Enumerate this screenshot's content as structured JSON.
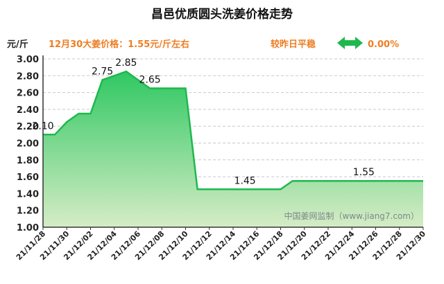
{
  "header": {
    "title": "昌邑优质圆头洗姜价格走势",
    "unit": "元/斤",
    "price_info": "12月30大姜价格：1.55元/斤左右",
    "change_label": "较昨日平稳",
    "change_value": "0.00%",
    "change_icon": "double-arrow-icon"
  },
  "watermark": "中国姜网监制（www.jiang7.com）",
  "colors": {
    "line": "#1fb84f",
    "fill_top": "#2fc862",
    "fill_bottom": "#d6ecc6",
    "arrow": "#1fb84f",
    "accent_text": "#ee7d22"
  },
  "chart_data": {
    "type": "area",
    "title": "昌邑优质圆头洗姜价格走势",
    "ylabel": "元/斤",
    "ylim": [
      1.0,
      3.0
    ],
    "yticks": [
      "1.00",
      "1.20",
      "1.40",
      "1.60",
      "1.80",
      "2.00",
      "2.20",
      "2.40",
      "2.60",
      "2.80",
      "3.00"
    ],
    "xticks": [
      "21/11/28",
      "21/11/30",
      "21/12/02",
      "21/12/04",
      "21/12/06",
      "21/12/08",
      "21/12/10",
      "21/12/12",
      "21/12/14",
      "21/12/16",
      "21/12/18",
      "21/12/20",
      "21/12/22",
      "21/12/24",
      "21/12/26",
      "21/12/28",
      "21/12/30"
    ],
    "grid": true,
    "x": [
      "21/11/28",
      "21/11/29",
      "21/11/30",
      "21/12/01",
      "21/12/02",
      "21/12/03",
      "21/12/04",
      "21/12/05",
      "21/12/06",
      "21/12/07",
      "21/12/08",
      "21/12/09",
      "21/12/10",
      "21/12/11",
      "21/12/12",
      "21/12/13",
      "21/12/14",
      "21/12/15",
      "21/12/16",
      "21/12/17",
      "21/12/18",
      "21/12/19",
      "21/12/20",
      "21/12/21",
      "21/12/22",
      "21/12/23",
      "21/12/24",
      "21/12/25",
      "21/12/26",
      "21/12/27",
      "21/12/28",
      "21/12/29",
      "21/12/30"
    ],
    "values": [
      2.1,
      2.1,
      2.25,
      2.35,
      2.35,
      2.75,
      2.8,
      2.85,
      2.75,
      2.65,
      2.65,
      2.65,
      2.65,
      1.45,
      1.45,
      1.45,
      1.45,
      1.45,
      1.45,
      1.45,
      1.45,
      1.55,
      1.55,
      1.55,
      1.55,
      1.55,
      1.55,
      1.55,
      1.55,
      1.55,
      1.55,
      1.55,
      1.55
    ],
    "annotations": [
      {
        "index": 0,
        "text": "2.10"
      },
      {
        "index": 5,
        "text": "2.75"
      },
      {
        "index": 7,
        "text": "2.85"
      },
      {
        "index": 9,
        "text": "2.65"
      },
      {
        "index": 17,
        "text": "1.45"
      },
      {
        "index": 27,
        "text": "1.55"
      }
    ]
  }
}
